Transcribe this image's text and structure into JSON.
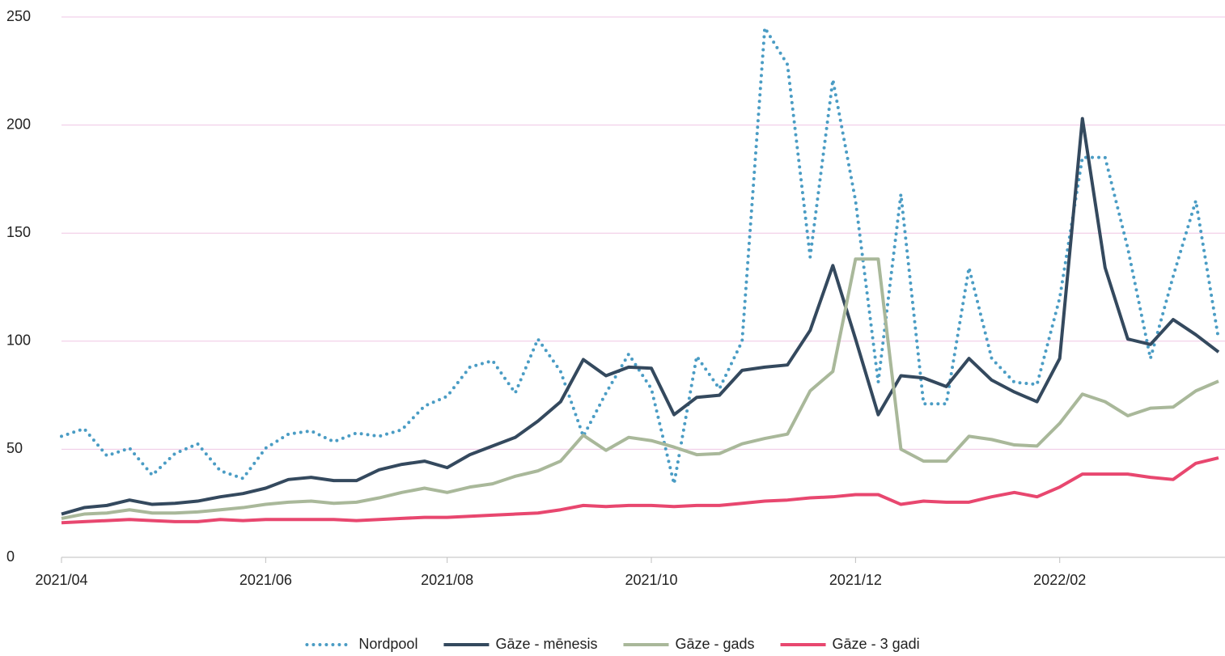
{
  "chart_data": {
    "type": "line",
    "categories": [
      "2021/04",
      null,
      null,
      null,
      null,
      null,
      null,
      null,
      null,
      "2021/06",
      null,
      null,
      null,
      null,
      null,
      null,
      null,
      "2021/08",
      null,
      null,
      null,
      null,
      null,
      null,
      null,
      null,
      "2021/10",
      null,
      null,
      null,
      null,
      null,
      null,
      null,
      null,
      "2021/12",
      null,
      null,
      null,
      null,
      null,
      null,
      null,
      null,
      "2022/02",
      null,
      null,
      null,
      null,
      null,
      null,
      null
    ],
    "series": [
      {
        "name": "Nordpool",
        "color": "#4a9cc4",
        "dash": "dotted",
        "values": [
          56,
          59.5,
          47,
          50.5,
          38,
          48,
          52.5,
          40,
          36.5,
          50.5,
          57,
          58.5,
          53.5,
          57.5,
          56,
          59,
          70,
          74.5,
          88,
          91,
          76,
          101,
          86,
          56,
          76,
          94,
          78,
          34,
          93,
          78,
          100,
          245,
          228,
          139,
          221,
          165,
          81,
          168,
          71,
          71,
          134,
          92,
          81,
          80,
          120,
          185,
          185,
          143,
          92,
          130,
          165,
          101
        ]
      },
      {
        "name": "Gāze - mēnesis",
        "color": "#34495e",
        "values": [
          20,
          23,
          24,
          26.5,
          24.5,
          25,
          26,
          28,
          29.5,
          32,
          36,
          37,
          35.5,
          35.5,
          40.5,
          43,
          44.5,
          41.5,
          47.5,
          51.5,
          55.5,
          63,
          72,
          91.5,
          84,
          88,
          87.5,
          66,
          74,
          75,
          86.5,
          88,
          89,
          105,
          135,
          101,
          66,
          84,
          83,
          79,
          92,
          82,
          76.5,
          72,
          92,
          203,
          134,
          101,
          98.5,
          110,
          103,
          95
        ]
      },
      {
        "name": "Gāze - gads",
        "color": "#a9b89a",
        "values": [
          18,
          20,
          20.5,
          22,
          20.5,
          20.5,
          21,
          22,
          23,
          24.5,
          25.5,
          26,
          25,
          25.5,
          27.5,
          30,
          32,
          30,
          32.5,
          34,
          37.5,
          40,
          44.5,
          56.5,
          49.5,
          55.5,
          54,
          51,
          47.5,
          48,
          52.5,
          55,
          57,
          77,
          86,
          138,
          138,
          50,
          44.5,
          44.5,
          56,
          54.5,
          52,
          51.5,
          62,
          75.5,
          72,
          65.5,
          69,
          69.5,
          77,
          81.5
        ]
      },
      {
        "name": "Gāze - 3 gadi",
        "color": "#e8476f",
        "values": [
          16,
          16.5,
          17,
          17.5,
          17,
          16.5,
          16.5,
          17.5,
          17,
          17.5,
          17.5,
          17.5,
          17.5,
          17,
          17.5,
          18,
          18.5,
          18.5,
          19,
          19.5,
          20,
          20.5,
          22,
          24,
          23.5,
          24,
          24,
          23.5,
          24,
          24,
          25,
          26,
          26.5,
          27.5,
          28,
          29,
          29,
          24.5,
          26,
          25.5,
          25.5,
          28,
          30,
          28,
          32.5,
          38.5,
          38.5,
          38.5,
          37,
          36,
          43.5,
          46
        ]
      }
    ],
    "ylim": [
      0,
      250
    ],
    "yticks": [
      0,
      50,
      100,
      150,
      200,
      250
    ],
    "grid": true,
    "legend": "bottom"
  }
}
